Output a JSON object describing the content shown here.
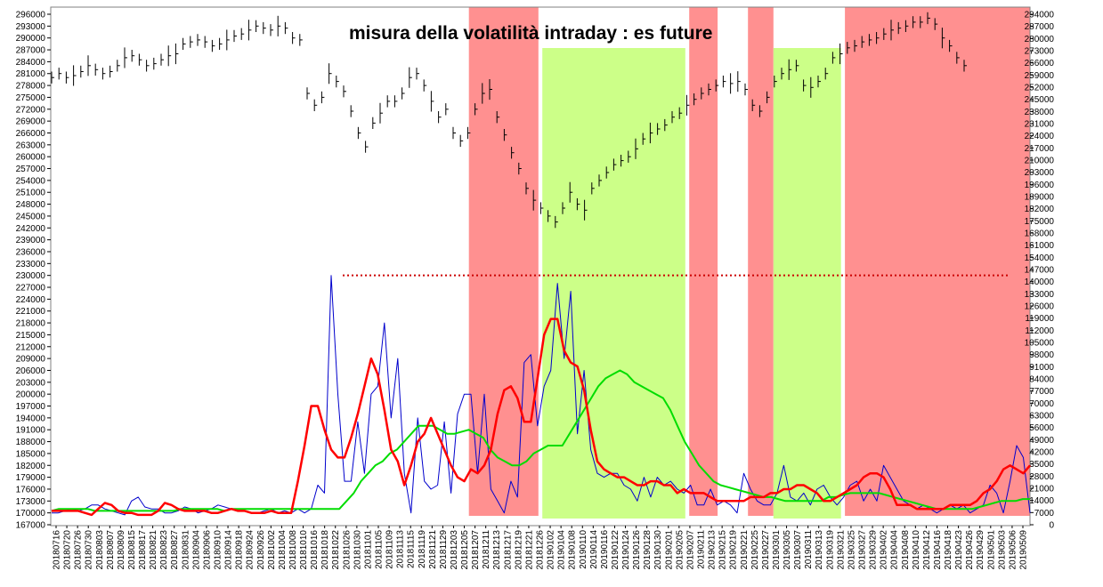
{
  "chart_data": {
    "type": "line",
    "title": "misura della volatilità intraday : es future",
    "colors": {
      "price": "#000000",
      "volatility": "#0000cc",
      "fast_average": "#ff0000",
      "slow_average": "#00dd00",
      "threshold": "#cc0000",
      "red_zone": "#ff9090",
      "green_zone": "#ccff88"
    },
    "left_axis": {
      "range": [
        167000,
        296000
      ],
      "ticks": [
        296000,
        293000,
        290000,
        287000,
        284000,
        281000,
        278000,
        275000,
        272000,
        269000,
        266000,
        263000,
        260000,
        257000,
        254000,
        251000,
        248000,
        245000,
        242000,
        239000,
        236000,
        233000,
        230000,
        227000,
        224000,
        221000,
        218000,
        215000,
        212000,
        209000,
        206000,
        203000,
        200000,
        197000,
        194000,
        191000,
        188000,
        185000,
        182000,
        179000,
        176000,
        173000,
        170000,
        167000
      ]
    },
    "right_axis": {
      "range": [
        0,
        294000
      ],
      "ticks": [
        294000,
        287000,
        280000,
        273000,
        266000,
        259000,
        252000,
        245000,
        238000,
        231000,
        224000,
        217000,
        210000,
        203000,
        196000,
        189000,
        182000,
        175000,
        168000,
        161000,
        154000,
        147000,
        140000,
        133000,
        126000,
        119000,
        112000,
        105000,
        98000,
        91000,
        84000,
        77000,
        70000,
        63000,
        56000,
        49000,
        42000,
        35000,
        28000,
        21000,
        14000,
        7000,
        0
      ]
    },
    "x_tick_labels": [
      "20180716",
      "20180720",
      "20180726",
      "20180730",
      "20180803",
      "20180807",
      "20180809",
      "20180815",
      "20180817",
      "20180821",
      "20180823",
      "20180827",
      "20180831",
      "20180904",
      "20180906",
      "20180910",
      "20180914",
      "20180918",
      "20180924",
      "20180926",
      "20181002",
      "20181004",
      "20181008",
      "20181010",
      "20181016",
      "20181018",
      "20181022",
      "20181026",
      "20181030",
      "20181101",
      "20181105",
      "20181109",
      "20181113",
      "20181115",
      "20181119",
      "20181121",
      "20181129",
      "20181203",
      "20181205",
      "20181207",
      "20181211",
      "20181213",
      "20181217",
      "20181219",
      "20181221",
      "20181226",
      "20190102",
      "20190104",
      "20190108",
      "20190110",
      "20190114",
      "20190116",
      "20190122",
      "20190124",
      "20190126",
      "20190128",
      "20190130",
      "20190201",
      "20190205",
      "20190207",
      "20190211",
      "20190213",
      "20190215",
      "20190219",
      "20190221",
      "20190225",
      "20190227",
      "20190301",
      "20190305",
      "20190307",
      "20190311",
      "20190313",
      "20190319",
      "20190321",
      "20190325",
      "20190327",
      "20190329",
      "20190402",
      "20190404",
      "20190408",
      "20190410",
      "20190412",
      "20190416",
      "20190418",
      "20190423",
      "20190426",
      "20190429",
      "20190501",
      "20190503",
      "20190506",
      "20190509"
    ],
    "threshold_value": 230000,
    "shaded_zones": [
      {
        "color": "red",
        "from": 0.427,
        "to": 0.498
      },
      {
        "color": "green",
        "from": 0.502,
        "to": 0.648
      },
      {
        "color": "red",
        "from": 0.652,
        "to": 0.681
      },
      {
        "color": "red",
        "from": 0.712,
        "to": 0.738
      },
      {
        "color": "green",
        "from": 0.738,
        "to": 0.807
      },
      {
        "color": "red",
        "from": 0.811,
        "to": 1.0
      }
    ],
    "series": [
      {
        "id": "price",
        "style": "bars",
        "values": [
          280000,
          281000,
          280000,
          280500,
          281500,
          283000,
          282000,
          281000,
          281500,
          283000,
          285000,
          285500,
          284500,
          283000,
          283500,
          284500,
          285500,
          286000,
          288500,
          289000,
          289500,
          289000,
          288000,
          288500,
          289500,
          290500,
          291000,
          292000,
          293000,
          292500,
          292000,
          293000,
          292500,
          290000,
          289500,
          276000,
          273000,
          275000,
          281000,
          279000,
          276500,
          271500,
          266000,
          262500,
          268500,
          271000,
          274000,
          274000,
          276000,
          280000,
          281000,
          278000,
          274000,
          270000,
          272000,
          266000,
          264000,
          266000,
          272000,
          276000,
          277000,
          270000,
          265500,
          261000,
          257000,
          252000,
          249000,
          247000,
          245000,
          243500,
          247000,
          251000,
          248000,
          246500,
          252000,
          254000,
          256000,
          258000,
          259000,
          260000,
          262000,
          264500,
          266000,
          267000,
          268000,
          270000,
          271000,
          273000,
          274500,
          276000,
          277000,
          278000,
          279000,
          278500,
          279000,
          277000,
          273000,
          271500,
          275000,
          279000,
          281000,
          282000,
          283000,
          278000,
          277500,
          279000,
          281000,
          285000,
          286000,
          287500,
          288000,
          289000,
          289500,
          290000,
          291000,
          292000,
          292500,
          293000,
          294000,
          294000,
          295000,
          293500,
          290000,
          288000,
          285000,
          283000
        ]
      },
      {
        "id": "volatility",
        "style": "line",
        "values": [
          170000,
          170000,
          170500,
          171000,
          170500,
          171000,
          172000,
          172000,
          171000,
          170500,
          170000,
          169500,
          173000,
          174000,
          171500,
          171000,
          171000,
          170000,
          170000,
          170500,
          171500,
          171000,
          170000,
          170500,
          171000,
          172000,
          171500,
          171000,
          170500,
          170500,
          170000,
          170000,
          170500,
          171000,
          170000,
          170500,
          170000,
          171000,
          170000,
          171000,
          177000,
          175000,
          230000,
          200000,
          178000,
          178000,
          193000,
          180000,
          200000,
          202000,
          218000,
          194000,
          209000,
          180000,
          170000,
          194000,
          178000,
          176000,
          177000,
          193000,
          175000,
          195000,
          200000,
          200000,
          180000,
          200000,
          176000,
          173000,
          170000,
          178000,
          174000,
          208000,
          210000,
          192000,
          202000,
          206000,
          228000,
          209000,
          226000,
          190000,
          206000,
          186000,
          180000,
          179000,
          180000,
          180000,
          177000,
          176000,
          173000,
          179000,
          174000,
          179000,
          177000,
          178000,
          176000,
          175000,
          177000,
          172000,
          172000,
          176000,
          172000,
          173000,
          172000,
          170000,
          180000,
          176000,
          173000,
          172000,
          172000,
          175000,
          182000,
          174000,
          173000,
          175000,
          172000,
          176000,
          177000,
          174000,
          172000,
          174000,
          177000,
          178000,
          173000,
          176000,
          173000,
          182000,
          179000,
          176000,
          173000,
          172000,
          171000,
          172000,
          171000,
          170000,
          171000,
          172000,
          171000,
          172000,
          170000,
          171000,
          172000,
          177000,
          175000,
          170000,
          178000,
          187000,
          184000,
          170000
        ]
      },
      {
        "id": "fast_average",
        "style": "line",
        "values": [
          170500,
          170500,
          170500,
          170500,
          170500,
          170000,
          169500,
          171000,
          172500,
          172000,
          170500,
          170000,
          170000,
          169500,
          169500,
          169500,
          170500,
          172500,
          172000,
          171000,
          170500,
          170500,
          170500,
          170500,
          170000,
          170000,
          170500,
          171000,
          170500,
          170500,
          170000,
          170000,
          170000,
          170500,
          170000,
          170000,
          170000,
          178000,
          187000,
          197000,
          197000,
          191000,
          186000,
          184000,
          184000,
          189000,
          195000,
          202000,
          209000,
          205000,
          196000,
          186000,
          183000,
          177000,
          182000,
          188000,
          190000,
          194000,
          190000,
          186000,
          182000,
          179000,
          178000,
          181000,
          180000,
          182000,
          186000,
          195000,
          201000,
          202000,
          199000,
          193000,
          193000,
          204000,
          215000,
          219000,
          219000,
          211000,
          208000,
          207000,
          201000,
          191000,
          183000,
          181000,
          180000,
          179000,
          179000,
          178000,
          177000,
          177000,
          178000,
          178000,
          177000,
          177000,
          175000,
          176000,
          175000,
          175000,
          175000,
          174000,
          173000,
          173000,
          173000,
          173000,
          173000,
          174000,
          174000,
          174000,
          175000,
          175000,
          176000,
          176000,
          177000,
          177000,
          176000,
          175000,
          173000,
          173000,
          174000,
          175000,
          176000,
          177000,
          179000,
          180000,
          180000,
          179000,
          176000,
          172000,
          172000,
          172000,
          171000,
          171000,
          171000,
          171000,
          171000,
          172000,
          172000,
          172000,
          172000,
          173000,
          175000,
          176000,
          178000,
          181000,
          182000,
          181000,
          180000,
          182000
        ]
      },
      {
        "id": "slow_average",
        "style": "line",
        "values": [
          170500,
          171000,
          171000,
          171000,
          171000,
          171000,
          170500,
          170500,
          170500,
          170500,
          170500,
          170500,
          170500,
          170500,
          170500,
          170500,
          170500,
          170500,
          171000,
          171000,
          171000,
          171000,
          171000,
          171000,
          170500,
          171000,
          171000,
          171000,
          171000,
          171000,
          171000,
          171000,
          171000,
          171000,
          171000,
          171000,
          171000,
          171000,
          171000,
          171000,
          171000,
          173000,
          175000,
          178000,
          180000,
          182000,
          183000,
          185000,
          186000,
          188000,
          190000,
          192000,
          192000,
          192000,
          191000,
          190000,
          190000,
          190500,
          191000,
          190000,
          189000,
          186000,
          184000,
          183000,
          182000,
          182000,
          183000,
          185000,
          186000,
          187000,
          187000,
          187000,
          190000,
          193000,
          196000,
          199000,
          202000,
          204000,
          205000,
          206000,
          205000,
          203000,
          202000,
          201000,
          200000,
          199000,
          196000,
          192000,
          188000,
          185000,
          182000,
          180000,
          178000,
          177000,
          176500,
          176000,
          175500,
          175000,
          174500,
          174000,
          174000,
          173500,
          173000,
          173000,
          173000,
          173000,
          173000,
          173000,
          174000,
          174000,
          174500,
          175000,
          175000,
          175000,
          175000,
          175000,
          174500,
          174000,
          173500,
          173000,
          172500,
          172000,
          171500,
          171000,
          171000,
          171000,
          171000,
          171000,
          171000,
          171500,
          172000,
          172500,
          173000,
          173000,
          173000,
          173500,
          173500
        ]
      }
    ]
  }
}
